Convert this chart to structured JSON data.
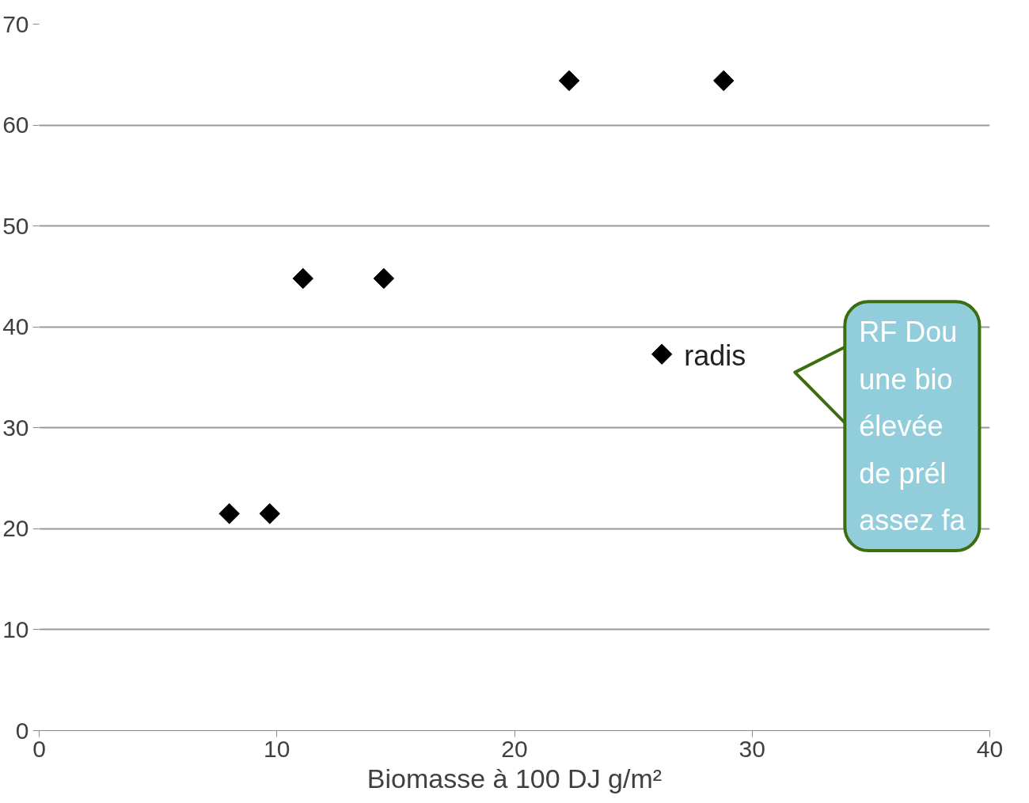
{
  "chart_data": {
    "type": "scatter",
    "xlabel": "Biomasse à 100 DJ g/m²",
    "x": [
      8,
      9.7,
      11.1,
      14.5,
      22.3,
      28.8,
      26.2
    ],
    "series": [
      {
        "color": "#000000",
        "values": [
          21.5,
          21.5,
          44.8,
          44.8,
          64.4,
          64.4,
          37.3
        ]
      }
    ],
    "xlim": [
      0,
      40
    ],
    "xticks": [
      0,
      10,
      20,
      30,
      40
    ],
    "ylim": [
      0,
      70
    ],
    "yticks": [
      0,
      10,
      20,
      30,
      40,
      50,
      60,
      70
    ],
    "grid": "y",
    "marker": "diamond",
    "annotations": [
      {
        "text": "radis",
        "x": 26.2,
        "y": 37.3
      },
      "RF Dou\nune bio\nélevée\nde prél\nassez fa"
    ]
  }
}
